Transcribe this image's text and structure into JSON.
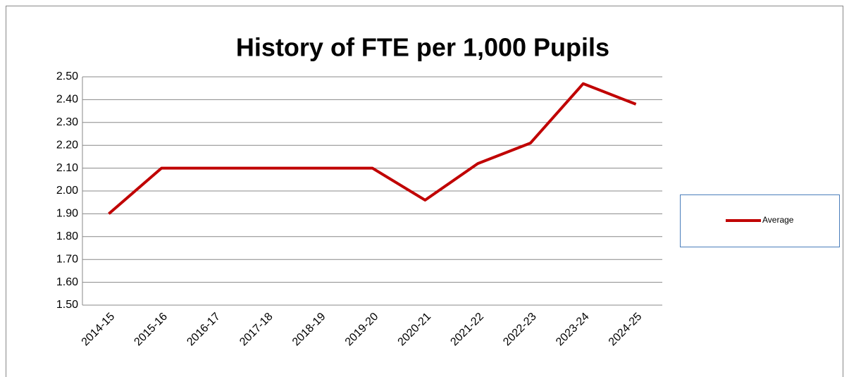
{
  "chart_data": {
    "type": "line",
    "title": "History of FTE per 1,000 Pupils",
    "categories": [
      "2014-15",
      "2015-16",
      "2016-17",
      "2017-18",
      "2018-19",
      "2019-20",
      "2020-21",
      "2021-22",
      "2022-23",
      "2023-24",
      "2024-25"
    ],
    "series": [
      {
        "name": "Average",
        "color": "#c00000",
        "values": [
          1.9,
          2.1,
          2.1,
          2.1,
          2.1,
          2.1,
          1.96,
          2.12,
          2.21,
          2.47,
          2.38
        ]
      }
    ],
    "ylim": [
      1.5,
      2.5
    ],
    "yticks": [
      {
        "value": 1.5,
        "label": "1.50"
      },
      {
        "value": 1.6,
        "label": "1.60"
      },
      {
        "value": 1.7,
        "label": "1.70"
      },
      {
        "value": 1.8,
        "label": "1.80"
      },
      {
        "value": 1.9,
        "label": "1.90"
      },
      {
        "value": 2.0,
        "label": "2.00"
      },
      {
        "value": 2.1,
        "label": "2.10"
      },
      {
        "value": 2.2,
        "label": "2.20"
      },
      {
        "value": 2.3,
        "label": "2.30"
      },
      {
        "value": 2.4,
        "label": "2.40"
      },
      {
        "value": 2.5,
        "label": "2.50"
      }
    ],
    "grid": true,
    "legend": "right"
  }
}
